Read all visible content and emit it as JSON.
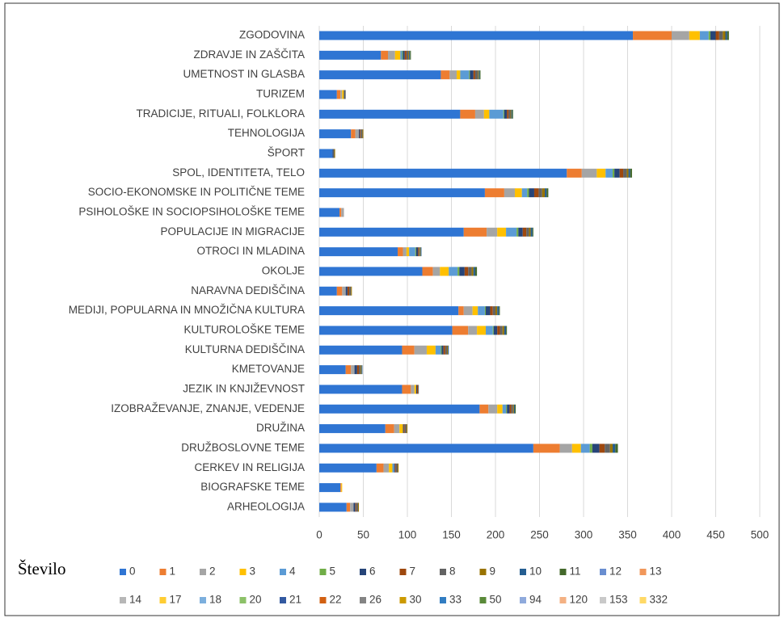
{
  "chart_data": {
    "type": "stacked_barh",
    "legend_title": "Število",
    "categories": [
      "ZGODOVINA",
      "ZDRAVJE IN ZAŠČITA",
      "UMETNOST IN GLASBA",
      "TURIZEM",
      "TRADICIJE, RITUALI, FOLKLORA",
      "TEHNOLOGIJA",
      "ŠPORT",
      "SPOL, IDENTITETA, TELO",
      "SOCIO-EKONOMSKE IN POLITIČNE TEME",
      "PSIHOLOŠKE IN SOCIOPSIHOLOŠKE TEME",
      "POPULACIJE IN MIGRACIJE",
      "OTROCI IN MLADINA",
      "OKOLJE",
      "NARAVNA DEDIŠČINA",
      "MEDIJI, POPULARNA IN MNOŽIČNA KULTURA",
      "KULTUROLOŠKE TEME",
      "KULTURNA DEDIŠČINA",
      "KMETOVANJE",
      "JEZIK IN KNJIŽEVNOST",
      "IZOBRAŽEVANJE, ZNANJE, VEDENJE",
      "DRUŽINA",
      "DRUŽBOSLOVNE TEME",
      "CERKEV IN RELIGIJA",
      "BIOGRAFSKE TEME",
      "ARHEOLOGIJA"
    ],
    "xlim": [
      0,
      500
    ],
    "xticks": [
      0,
      50,
      100,
      150,
      200,
      250,
      300,
      350,
      400,
      450,
      500
    ],
    "grid": true,
    "series": [
      {
        "name": "0",
        "color": "#2f75d3",
        "values": [
          356,
          70,
          138,
          20,
          160,
          36,
          15,
          281,
          188,
          23,
          164,
          89,
          117,
          20,
          158,
          151,
          94,
          30,
          94,
          182,
          75,
          243,
          65,
          24,
          31
        ]
      },
      {
        "name": "1",
        "color": "#ed7d31",
        "values": [
          44,
          8,
          10,
          4,
          17,
          5,
          0,
          17,
          22,
          2,
          26,
          6,
          12,
          6,
          6,
          18,
          14,
          6,
          10,
          10,
          10,
          30,
          8,
          1,
          4
        ]
      },
      {
        "name": "2",
        "color": "#a5a5a5",
        "values": [
          20,
          8,
          8,
          2,
          10,
          4,
          0,
          17,
          12,
          3,
          12,
          4,
          8,
          4,
          10,
          10,
          14,
          4,
          4,
          10,
          6,
          14,
          6,
          0,
          4
        ]
      },
      {
        "name": "3",
        "color": "#ffc000",
        "values": [
          12,
          6,
          4,
          2,
          6,
          0,
          0,
          10,
          8,
          0,
          10,
          3,
          10,
          0,
          6,
          10,
          10,
          0,
          2,
          6,
          4,
          10,
          4,
          1,
          0
        ]
      },
      {
        "name": "4",
        "color": "#5b9bd5",
        "values": [
          10,
          2,
          10,
          0,
          16,
          0,
          0,
          8,
          6,
          0,
          12,
          7,
          10,
          0,
          8,
          8,
          6,
          0,
          0,
          4,
          0,
          10,
          2,
          0,
          0
        ]
      },
      {
        "name": "5",
        "color": "#70ad47",
        "values": [
          2,
          1,
          1,
          0,
          1,
          0,
          0,
          2,
          2,
          0,
          2,
          1,
          2,
          0,
          1,
          1,
          1,
          0,
          0,
          1,
          0,
          3,
          0,
          0,
          0
        ]
      },
      {
        "name": "6",
        "color": "#264478",
        "values": [
          6,
          2,
          4,
          1,
          3,
          1,
          1,
          6,
          6,
          0,
          5,
          2,
          6,
          2,
          5,
          4,
          2,
          3,
          1,
          3,
          1,
          8,
          1,
          0,
          2
        ]
      },
      {
        "name": "7",
        "color": "#9e480e",
        "values": [
          4,
          2,
          2,
          0,
          2,
          1,
          0,
          4,
          5,
          0,
          4,
          1,
          4,
          2,
          3,
          3,
          2,
          2,
          1,
          2,
          1,
          6,
          1,
          0,
          1
        ]
      },
      {
        "name": "8",
        "color": "#636363",
        "values": [
          4,
          2,
          3,
          1,
          2,
          2,
          1,
          4,
          4,
          0,
          3,
          1,
          4,
          2,
          3,
          3,
          2,
          2,
          1,
          2,
          2,
          6,
          2,
          0,
          2
        ]
      },
      {
        "name": "9",
        "color": "#997300",
        "values": [
          3,
          1,
          1,
          0,
          1,
          1,
          1,
          2,
          3,
          0,
          2,
          1,
          2,
          1,
          2,
          2,
          1,
          1,
          0,
          1,
          1,
          3,
          1,
          0,
          1
        ]
      },
      {
        "name": "10",
        "color": "#255e91",
        "values": [
          2,
          1,
          1,
          0,
          1,
          0,
          0,
          2,
          2,
          0,
          2,
          1,
          2,
          0,
          2,
          2,
          1,
          1,
          0,
          1,
          0,
          3,
          0,
          0,
          0
        ]
      },
      {
        "name": "11",
        "color": "#43682b",
        "values": [
          2,
          1,
          1,
          0,
          1,
          0,
          0,
          2,
          2,
          0,
          1,
          0,
          2,
          0,
          1,
          1,
          0,
          0,
          0,
          1,
          0,
          3,
          0,
          0,
          0
        ]
      },
      {
        "name": "12",
        "color": "#698ed0",
        "values": [
          0,
          0,
          0,
          0,
          0,
          0,
          0,
          0,
          0,
          0,
          0,
          0,
          0,
          0,
          0,
          0,
          0,
          0,
          0,
          0,
          0,
          0,
          0,
          0,
          0
        ]
      },
      {
        "name": "13",
        "color": "#f1975a",
        "values": [
          0,
          0,
          0,
          0,
          0,
          0,
          0,
          0,
          0,
          0,
          0,
          0,
          0,
          0,
          0,
          0,
          0,
          0,
          0,
          0,
          0,
          0,
          0,
          0,
          0
        ]
      },
      {
        "name": "14",
        "color": "#b7b7b7",
        "values": [
          0,
          0,
          0,
          0,
          0,
          0,
          0,
          0,
          0,
          0,
          0,
          0,
          0,
          0,
          0,
          0,
          0,
          0,
          0,
          0,
          0,
          0,
          0,
          0,
          0
        ]
      },
      {
        "name": "17",
        "color": "#ffcd33",
        "values": [
          0,
          0,
          0,
          0,
          0,
          0,
          0,
          0,
          0,
          0,
          0,
          0,
          0,
          0,
          0,
          0,
          0,
          0,
          0,
          0,
          0,
          0,
          0,
          0,
          0
        ]
      },
      {
        "name": "18",
        "color": "#7cafdd",
        "values": [
          0,
          0,
          0,
          0,
          0,
          0,
          0,
          0,
          0,
          0,
          0,
          0,
          0,
          0,
          0,
          0,
          0,
          0,
          0,
          0,
          0,
          0,
          0,
          0,
          0
        ]
      },
      {
        "name": "20",
        "color": "#8cc168",
        "values": [
          0,
          0,
          0,
          0,
          0,
          0,
          0,
          0,
          0,
          0,
          0,
          0,
          0,
          0,
          0,
          0,
          0,
          0,
          0,
          0,
          0,
          0,
          0,
          0,
          0
        ]
      },
      {
        "name": "21",
        "color": "#335aa1",
        "values": [
          0,
          0,
          0,
          0,
          0,
          0,
          0,
          0,
          0,
          0,
          0,
          0,
          0,
          0,
          0,
          0,
          0,
          0,
          0,
          0,
          0,
          0,
          0,
          0,
          0
        ]
      },
      {
        "name": "22",
        "color": "#d26012",
        "values": [
          0,
          0,
          0,
          0,
          0,
          0,
          0,
          0,
          0,
          0,
          0,
          0,
          0,
          0,
          0,
          0,
          0,
          0,
          0,
          0,
          0,
          0,
          0,
          0,
          0
        ]
      },
      {
        "name": "26",
        "color": "#848484",
        "values": [
          0,
          0,
          0,
          0,
          0,
          0,
          0,
          0,
          0,
          0,
          0,
          0,
          0,
          0,
          0,
          0,
          0,
          0,
          0,
          0,
          0,
          0,
          0,
          0,
          0
        ]
      },
      {
        "name": "30",
        "color": "#cc9a00",
        "values": [
          0,
          0,
          0,
          0,
          0,
          0,
          0,
          0,
          0,
          0,
          0,
          0,
          0,
          0,
          0,
          0,
          0,
          0,
          0,
          0,
          0,
          0,
          0,
          0,
          0
        ]
      },
      {
        "name": "33",
        "color": "#327dc2",
        "values": [
          0,
          0,
          0,
          0,
          0,
          0,
          0,
          0,
          0,
          0,
          0,
          0,
          0,
          0,
          0,
          0,
          0,
          0,
          0,
          0,
          0,
          0,
          0,
          0,
          0
        ]
      },
      {
        "name": "50",
        "color": "#5a8a39",
        "values": [
          0,
          0,
          0,
          0,
          0,
          0,
          0,
          0,
          0,
          0,
          0,
          0,
          0,
          0,
          0,
          0,
          0,
          0,
          0,
          0,
          0,
          0,
          0,
          0,
          0
        ]
      },
      {
        "name": "94",
        "color": "#8faadc",
        "values": [
          0,
          0,
          0,
          0,
          0,
          0,
          0,
          0,
          0,
          0,
          0,
          0,
          0,
          0,
          0,
          0,
          0,
          0,
          0,
          0,
          0,
          0,
          0,
          0,
          0
        ]
      },
      {
        "name": "120",
        "color": "#f4b183",
        "values": [
          0,
          0,
          0,
          0,
          0,
          0,
          0,
          0,
          0,
          0,
          0,
          0,
          0,
          0,
          0,
          0,
          0,
          0,
          0,
          0,
          0,
          0,
          0,
          0,
          0
        ]
      },
      {
        "name": "153",
        "color": "#c9c9c9",
        "values": [
          0,
          0,
          0,
          0,
          0,
          0,
          0,
          0,
          0,
          0,
          0,
          0,
          0,
          0,
          0,
          0,
          0,
          0,
          0,
          0,
          0,
          0,
          0,
          0,
          0
        ]
      },
      {
        "name": "332",
        "color": "#ffd966",
        "values": [
          0,
          0,
          0,
          0,
          0,
          0,
          0,
          0,
          0,
          0,
          0,
          0,
          0,
          0,
          0,
          0,
          0,
          0,
          0,
          0,
          0,
          0,
          0,
          0,
          0
        ]
      }
    ]
  }
}
